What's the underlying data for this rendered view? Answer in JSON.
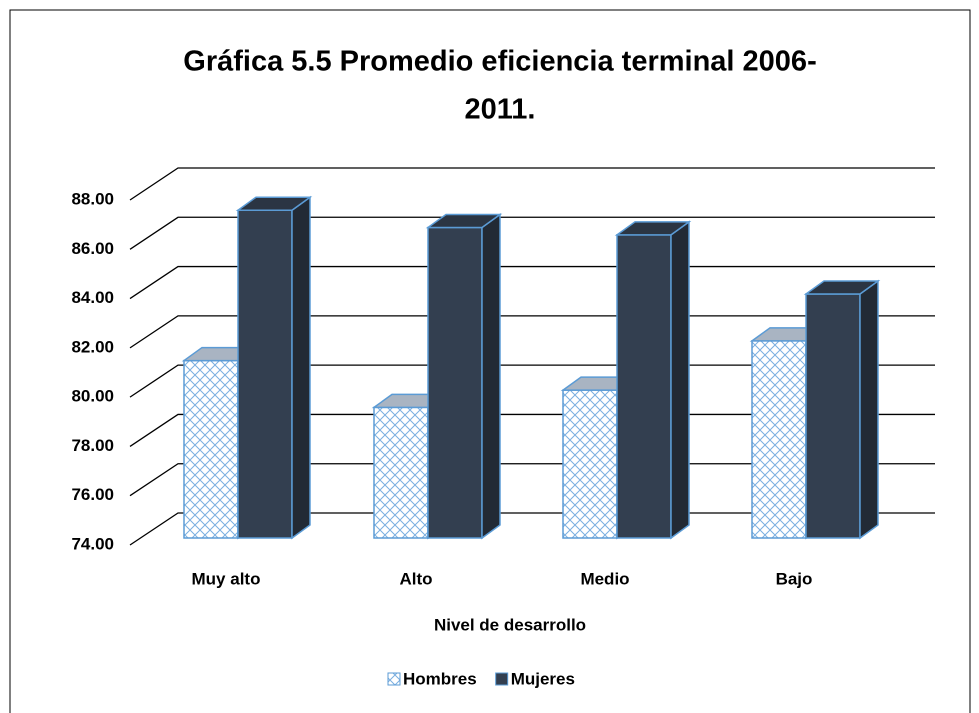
{
  "chart_data": {
    "type": "bar3d",
    "title": [
      "Gráfica 5.5 Promedio eficiencia terminal 2006-",
      "2011."
    ],
    "x_label": "Nivel de desarrollo",
    "categories": [
      "Muy alto",
      "Alto",
      "Medio",
      "Bajo"
    ],
    "series": [
      {
        "name": "Hombres",
        "color": "#5b9bd5",
        "pattern": "crosshatch",
        "values": [
          81.2,
          79.3,
          80.0,
          82.0
        ]
      },
      {
        "name": "Mujeres",
        "color": "#333f50",
        "values": [
          87.3,
          86.6,
          86.3,
          83.9
        ]
      }
    ],
    "ylim": [
      74,
      88
    ],
    "yticks": [
      {
        "value": 74,
        "label": "74.00"
      },
      {
        "value": 76,
        "label": "76.00"
      },
      {
        "value": 78,
        "label": "78.00"
      },
      {
        "value": 80,
        "label": "80.00"
      },
      {
        "value": 82,
        "label": "82.00"
      },
      {
        "value": 84,
        "label": "84.00"
      },
      {
        "value": 86,
        "label": "86.00"
      },
      {
        "value": 88,
        "label": "88.00"
      }
    ],
    "grid": true,
    "legend": "bottom"
  }
}
